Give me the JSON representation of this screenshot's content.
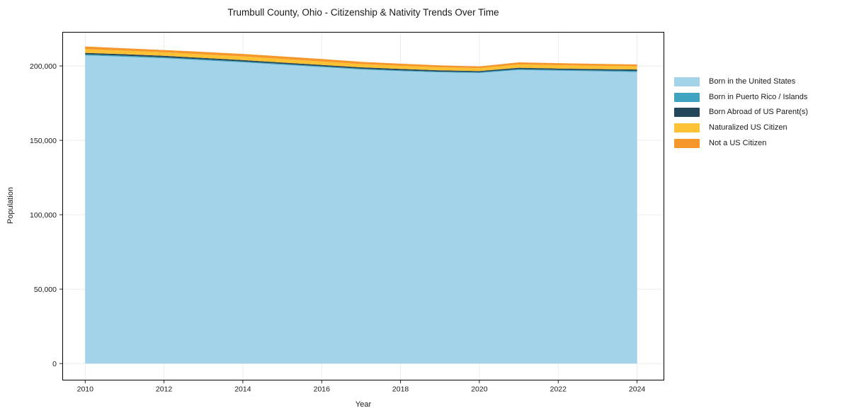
{
  "title": "Trumbull County, Ohio - Citizenship & Nativity Trends Over Time",
  "axes": {
    "x_label": "Year",
    "y_label": "Population",
    "x_tick_labels": [
      "2010",
      "2012",
      "2014",
      "2016",
      "2018",
      "2020",
      "2022",
      "2024"
    ],
    "y_tick_labels": [
      "0",
      "50,000",
      "100,000",
      "150,000",
      "200,000"
    ]
  },
  "legend": {
    "position": "right",
    "items": [
      {
        "label": "Born in the United States",
        "color": "#A3D3E8"
      },
      {
        "label": "Born in Puerto Rico / Islands",
        "color": "#40A3BF"
      },
      {
        "label": "Born Abroad of US Parent(s)",
        "color": "#24485A"
      },
      {
        "label": "Naturalized US Citizen",
        "color": "#FCC233"
      },
      {
        "label": "Not a US Citizen",
        "color": "#F6972B"
      }
    ]
  },
  "chart_data": {
    "type": "area",
    "stacked": true,
    "title": "Trumbull County, Ohio - Citizenship & Nativity Trends Over Time",
    "xlabel": "Year",
    "ylabel": "Population",
    "x": [
      2010,
      2011,
      2012,
      2013,
      2014,
      2015,
      2016,
      2017,
      2018,
      2019,
      2020,
      2021,
      2022,
      2023,
      2024
    ],
    "series": [
      {
        "name": "Born in the United States",
        "color": "#A3D3E8",
        "values": [
          207100,
          206200,
          205200,
          203800,
          202400,
          200800,
          199200,
          197600,
          196500,
          195700,
          195300,
          197300,
          196800,
          196400,
          195900
        ]
      },
      {
        "name": "Born in Puerto Rico / Islands",
        "color": "#40A3BF",
        "values": [
          700,
          700,
          600,
          600,
          600,
          600,
          600,
          600,
          600,
          500,
          500,
          600,
          600,
          600,
          700
        ]
      },
      {
        "name": "Born Abroad of US Parent(s)",
        "color": "#24485A",
        "values": [
          1000,
          1000,
          1000,
          1000,
          1000,
          900,
          900,
          900,
          900,
          900,
          800,
          900,
          900,
          900,
          1000
        ]
      },
      {
        "name": "Naturalized US Citizen",
        "color": "#FCC233",
        "values": [
          2500,
          2400,
          2400,
          2400,
          2400,
          2400,
          2300,
          2200,
          2100,
          2000,
          1900,
          2200,
          2200,
          2200,
          2200
        ]
      },
      {
        "name": "Not a US Citizen",
        "color": "#F6972B",
        "values": [
          1800,
          1600,
          1500,
          1600,
          1700,
          1700,
          1700,
          1500,
          1400,
          1300,
          1200,
          1400,
          1400,
          1300,
          1200
        ]
      }
    ],
    "x_tick_values": [
      2010,
      2012,
      2014,
      2016,
      2018,
      2020,
      2022,
      2024
    ],
    "y_tick_values": [
      0,
      50000,
      100000,
      150000,
      200000
    ],
    "xlim": [
      2009.42,
      2024.69
    ],
    "ylim": [
      -11400,
      222900
    ],
    "grid": true,
    "legend_position": "right"
  }
}
